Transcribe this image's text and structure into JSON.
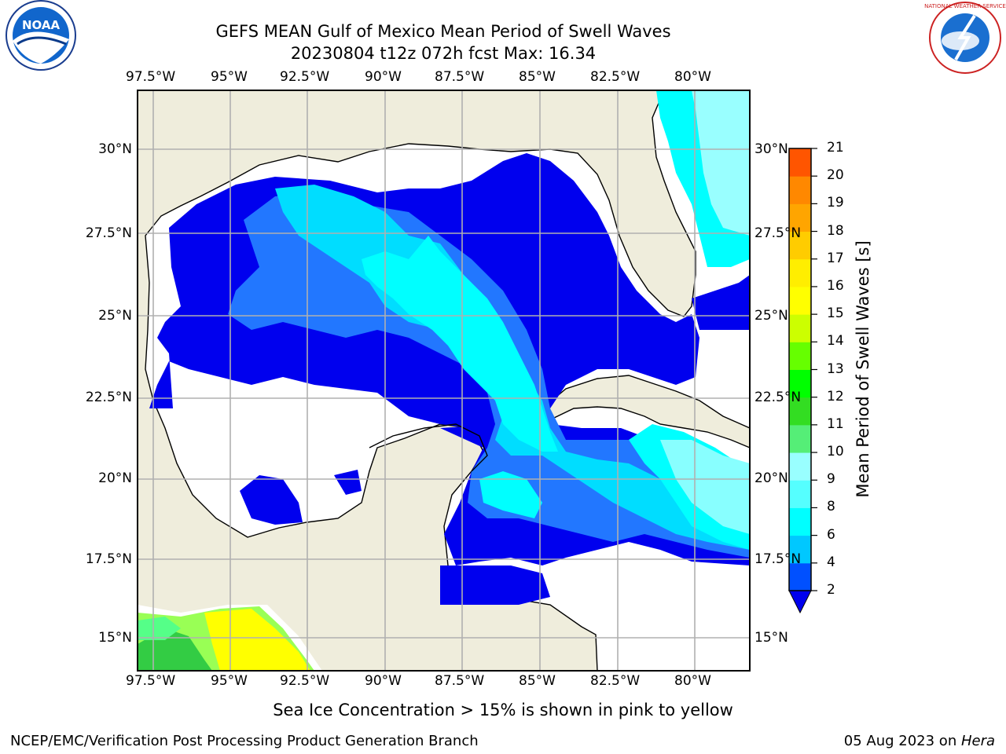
{
  "header": {
    "title_line1": "GEFS MEAN Gulf of Mexico Mean Period of Swell Waves",
    "title_line2": "20230804 t12z 072h fcst   Max: 16.34"
  },
  "logos": {
    "noaa_label": "NOAA",
    "nws_label": "NATIONAL WEATHER SERVICE"
  },
  "map": {
    "lon_labels": [
      "97.5°W",
      "95°W",
      "92.5°W",
      "90°W",
      "87.5°W",
      "85°W",
      "82.5°W",
      "80°W"
    ],
    "lat_labels": [
      "30°N",
      "27.5°N",
      "25°N",
      "22.5°N",
      "20°N",
      "17.5°N",
      "15°N"
    ],
    "land_color": "#efeddc",
    "ocean_nodata_color": "#ffffff"
  },
  "colorbar": {
    "label": "Mean Period of Swell Waves [s]",
    "ticks": [
      "2",
      "4",
      "6",
      "8",
      "9",
      "10",
      "11",
      "12",
      "13",
      "14",
      "15",
      "16",
      "17",
      "18",
      "19",
      "20",
      "21"
    ],
    "colors": [
      "#0050ff",
      "#00c8ff",
      "#00ffff",
      "#55ffff",
      "#99ffff",
      "#55ee77",
      "#33dd22",
      "#00ff00",
      "#66ff00",
      "#ccff00",
      "#ffff00",
      "#ffee00",
      "#ffcc00",
      "#ffa500",
      "#ff8800",
      "#ff5500",
      "#ff2200",
      "#ff0000"
    ]
  },
  "bottom_note": "Sea Ice Concentration > 15% is shown in pink to yellow",
  "footer": {
    "left": "NCEP/EMC/Verification Post Processing Product Generation Branch",
    "right_date": "05 Aug 2023 on ",
    "right_host": "Hera"
  }
}
